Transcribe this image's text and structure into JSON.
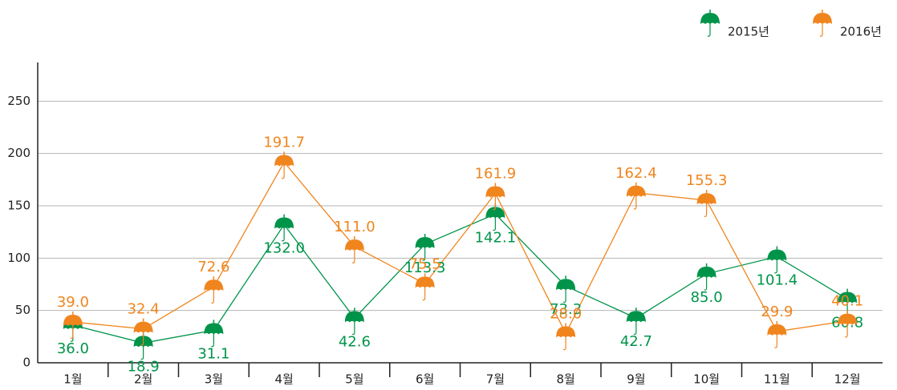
{
  "chart_data": {
    "type": "line",
    "categories": [
      "1월",
      "2월",
      "3월",
      "4월",
      "5월",
      "6월",
      "7월",
      "8월",
      "9월",
      "10월",
      "11월",
      "12월"
    ],
    "series": [
      {
        "name": "2015년",
        "color": "#00944a",
        "values": [
          36.0,
          18.9,
          31.1,
          132.0,
          42.6,
          113.3,
          142.1,
          73.3,
          42.7,
          85.0,
          101.4,
          60.8
        ],
        "value_labels": [
          "36.0",
          "18.9",
          "31.1",
          "132.0",
          "42.6",
          "113.3",
          "142.1",
          "73.3",
          "42.7",
          "85.0",
          "101.4",
          "60.8"
        ]
      },
      {
        "name": "2016년",
        "color": "#f0851e",
        "values": [
          39.0,
          32.4,
          72.6,
          191.7,
          111.0,
          75.5,
          161.9,
          28.0,
          162.4,
          155.3,
          29.9,
          40.1
        ],
        "value_labels": [
          "39.0",
          "32.4",
          "72.6",
          "191.7",
          "111.0",
          "75.5",
          "161.9",
          "28.0",
          "162.4",
          "155.3",
          "29.9",
          "40.1"
        ]
      }
    ],
    "ylim": [
      0,
      287
    ],
    "yticks": [
      0,
      50,
      100,
      150,
      200,
      250
    ],
    "grid": true,
    "legend": "top-right"
  }
}
